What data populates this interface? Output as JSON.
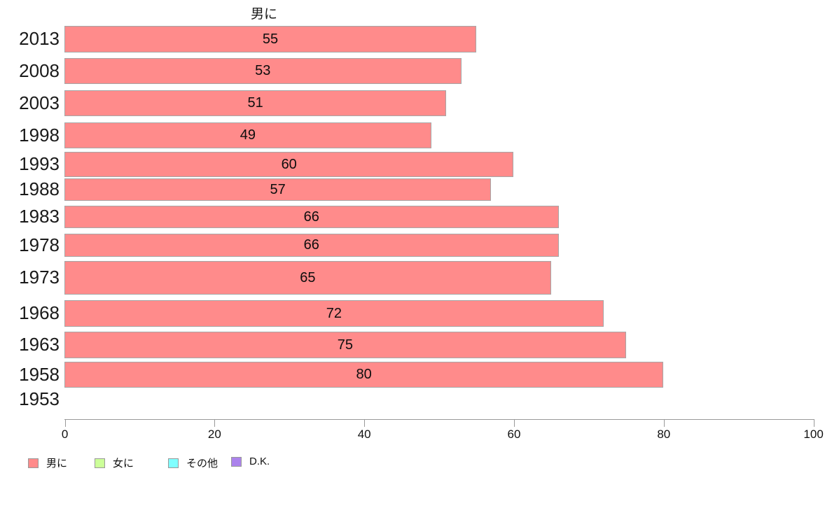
{
  "chart_data": {
    "type": "bar",
    "orientation": "horizontal",
    "title": "男に",
    "categories": [
      "2013",
      "2008",
      "2003",
      "1998",
      "1993",
      "1988",
      "1983",
      "1978",
      "1973",
      "1968",
      "1963",
      "1958",
      "1953"
    ],
    "values": [
      55,
      53,
      51,
      49,
      60,
      57,
      66,
      66,
      65,
      72,
      75,
      80,
      null
    ],
    "x_ticks": [
      0,
      20,
      40,
      60,
      80,
      100
    ],
    "xlim": [
      0,
      100
    ],
    "grid": false,
    "bar_color": "#ff8b8b",
    "bar_border_color": "#a6a6a6",
    "axis_color": "#999999",
    "text_color": "#1a1a1a",
    "legend_position": "bottom-left",
    "legend": [
      {
        "label": "男に",
        "color": "#ff8b8b"
      },
      {
        "label": "女に",
        "color": "#ccff99"
      },
      {
        "label": "その他",
        "color": "#80ffff"
      },
      {
        "label": "D.K.",
        "color": "#ab82ec"
      }
    ]
  }
}
